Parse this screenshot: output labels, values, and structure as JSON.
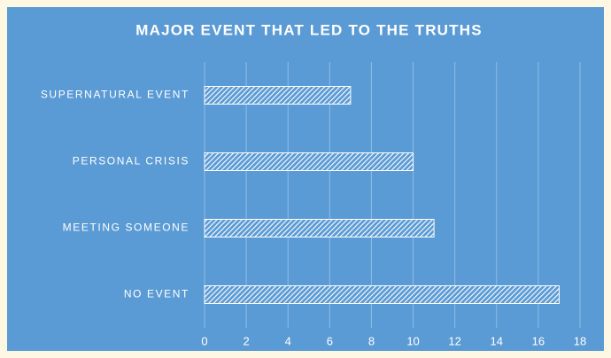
{
  "chart_data": {
    "type": "bar",
    "orientation": "horizontal",
    "title": "MAJOR EVENT THAT LED TO THE TRUTHS",
    "categories": [
      "SUPERNATURAL EVENT",
      "PERSONAL CRISIS",
      "MEETING SOMEONE",
      "NO EVENT"
    ],
    "values": [
      7,
      10,
      11,
      17
    ],
    "color": "#ffffff",
    "xlim": [
      0,
      18
    ],
    "xticks": [
      0,
      2,
      4,
      6,
      8,
      10,
      12,
      14,
      16,
      18
    ],
    "grid": true
  }
}
